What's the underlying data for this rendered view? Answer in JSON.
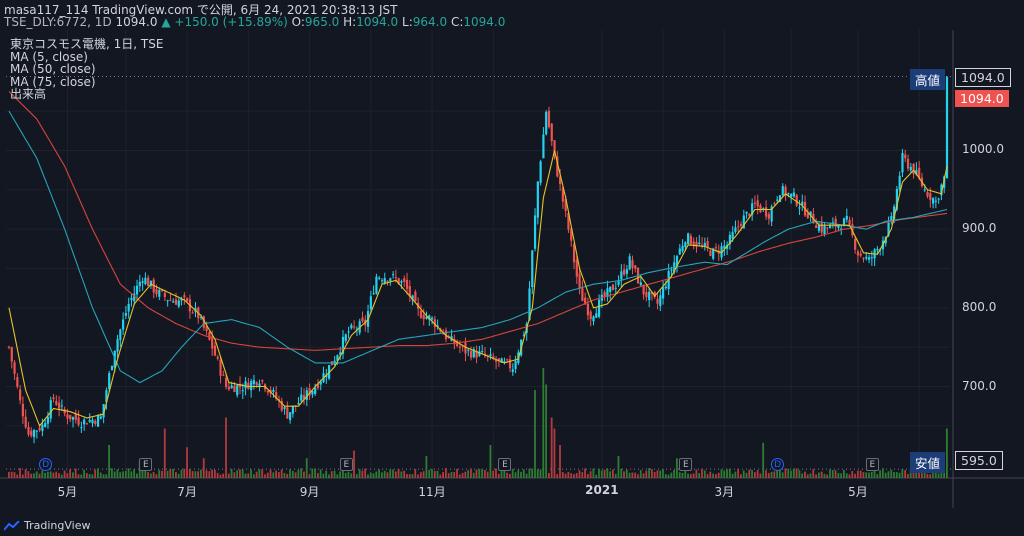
{
  "header": {
    "line1": "masa117_114 TradingView.com で公開, 6月 24, 2021 20:38:13 JST",
    "symbol": "TSE_DLY:6772, 1D",
    "last": "1094.0",
    "arrow": "▲",
    "change": "+150.0 (+15.89%)",
    "ohlc_o_label": "O:",
    "ohlc_o": "965.0",
    "ohlc_h_label": "H:",
    "ohlc_h": "1094.0",
    "ohlc_l_label": "L:",
    "ohlc_l": "964.0",
    "ohlc_c_label": "C:",
    "ohlc_c": "1094.0"
  },
  "legend": {
    "title": "東京コスモス電機, 1日, TSE",
    "ma1": "MA (5, close)",
    "ma2": "MA (50, close)",
    "ma3": "MA (75, close)",
    "volume": "出来高"
  },
  "tags": {
    "high_label": "高値",
    "high_value": "1094.0",
    "last_value": "1094.0",
    "low_label": "安値",
    "low_value": "595.0"
  },
  "footer": {
    "brand": "TradingView",
    "icon": "tradingview-logo-icon"
  },
  "colors": {
    "up": "#26a69a",
    "down": "#ef5350",
    "up_bright": "#22d3ee",
    "ma5": "#e6c229",
    "ma50": "#26a4b8",
    "ma75": "#d9443a",
    "volume_up": "#2e7d32",
    "volume_down": "#b23b3b"
  },
  "chart_data": {
    "type": "candlestick",
    "title": "東京コスモス電機, 1日, TSE",
    "y_ticks": [
      1000.0,
      900.0,
      800.0,
      700.0
    ],
    "ylim": [
      585,
      1115
    ],
    "x_ticks": [
      "5月",
      "7月",
      "9月",
      "11月",
      "2021",
      "3月",
      "5月"
    ],
    "x_tick_index": [
      21,
      64,
      108,
      152,
      213,
      257,
      305
    ],
    "events": [
      {
        "type": "D",
        "index": 13
      },
      {
        "type": "E",
        "index": 49
      },
      {
        "type": "E",
        "index": 121
      },
      {
        "type": "E",
        "index": 178
      },
      {
        "type": "E",
        "index": 243
      },
      {
        "type": "D",
        "index": 276
      },
      {
        "type": "E",
        "index": 310
      }
    ],
    "close_keypoints": [
      [
        0,
        750
      ],
      [
        4,
        680
      ],
      [
        7,
        640
      ],
      [
        12,
        650
      ],
      [
        16,
        685
      ],
      [
        20,
        665
      ],
      [
        26,
        655
      ],
      [
        33,
        660
      ],
      [
        38,
        750
      ],
      [
        43,
        805
      ],
      [
        48,
        840
      ],
      [
        53,
        820
      ],
      [
        58,
        810
      ],
      [
        63,
        808
      ],
      [
        68,
        790
      ],
      [
        73,
        750
      ],
      [
        78,
        700
      ],
      [
        84,
        700
      ],
      [
        90,
        710
      ],
      [
        95,
        690
      ],
      [
        100,
        665
      ],
      [
        104,
        680
      ],
      [
        110,
        700
      ],
      [
        116,
        730
      ],
      [
        122,
        770
      ],
      [
        128,
        780
      ],
      [
        132,
        840
      ],
      [
        137,
        840
      ],
      [
        142,
        830
      ],
      [
        147,
        795
      ],
      [
        152,
        785
      ],
      [
        158,
        760
      ],
      [
        164,
        745
      ],
      [
        170,
        740
      ],
      [
        176,
        730
      ],
      [
        181,
        725
      ],
      [
        186,
        780
      ],
      [
        190,
        960
      ],
      [
        193,
        1050
      ],
      [
        196,
        990
      ],
      [
        201,
        900
      ],
      [
        205,
        820
      ],
      [
        209,
        790
      ],
      [
        213,
        810
      ],
      [
        218,
        830
      ],
      [
        223,
        860
      ],
      [
        228,
        820
      ],
      [
        233,
        805
      ],
      [
        238,
        850
      ],
      [
        243,
        890
      ],
      [
        248,
        880
      ],
      [
        253,
        870
      ],
      [
        258,
        880
      ],
      [
        263,
        910
      ],
      [
        268,
        930
      ],
      [
        273,
        920
      ],
      [
        277,
        950
      ],
      [
        282,
        940
      ],
      [
        287,
        920
      ],
      [
        292,
        900
      ],
      [
        297,
        905
      ],
      [
        301,
        910
      ],
      [
        305,
        870
      ],
      [
        309,
        860
      ],
      [
        313,
        880
      ],
      [
        317,
        910
      ],
      [
        321,
        990
      ],
      [
        325,
        975
      ],
      [
        329,
        950
      ],
      [
        333,
        935
      ],
      [
        336,
        965
      ],
      [
        337,
        1094
      ]
    ],
    "ma5_keypoints": [
      [
        0,
        800
      ],
      [
        6,
        695
      ],
      [
        11,
        650
      ],
      [
        16,
        672
      ],
      [
        22,
        668
      ],
      [
        28,
        660
      ],
      [
        34,
        665
      ],
      [
        39,
        735
      ],
      [
        45,
        805
      ],
      [
        51,
        830
      ],
      [
        57,
        820
      ],
      [
        63,
        810
      ],
      [
        69,
        790
      ],
      [
        74,
        760
      ],
      [
        79,
        705
      ],
      [
        86,
        700
      ],
      [
        92,
        700
      ],
      [
        99,
        675
      ],
      [
        104,
        675
      ],
      [
        110,
        700
      ],
      [
        117,
        725
      ],
      [
        123,
        765
      ],
      [
        129,
        785
      ],
      [
        134,
        830
      ],
      [
        139,
        835
      ],
      [
        144,
        815
      ],
      [
        150,
        790
      ],
      [
        157,
        765
      ],
      [
        164,
        750
      ],
      [
        171,
        740
      ],
      [
        178,
        730
      ],
      [
        183,
        735
      ],
      [
        188,
        800
      ],
      [
        192,
        940
      ],
      [
        196,
        1000
      ],
      [
        200,
        940
      ],
      [
        205,
        850
      ],
      [
        210,
        800
      ],
      [
        215,
        805
      ],
      [
        221,
        830
      ],
      [
        227,
        840
      ],
      [
        232,
        815
      ],
      [
        238,
        840
      ],
      [
        244,
        880
      ],
      [
        250,
        878
      ],
      [
        256,
        870
      ],
      [
        262,
        895
      ],
      [
        268,
        925
      ],
      [
        274,
        925
      ],
      [
        279,
        945
      ],
      [
        285,
        930
      ],
      [
        291,
        905
      ],
      [
        297,
        905
      ],
      [
        302,
        905
      ],
      [
        307,
        870
      ],
      [
        312,
        868
      ],
      [
        317,
        900
      ],
      [
        321,
        960
      ],
      [
        325,
        975
      ],
      [
        330,
        950
      ],
      [
        335,
        945
      ],
      [
        337,
        980
      ]
    ],
    "ma50_keypoints": [
      [
        0,
        1050
      ],
      [
        10,
        990
      ],
      [
        20,
        900
      ],
      [
        30,
        800
      ],
      [
        40,
        720
      ],
      [
        47,
        705
      ],
      [
        55,
        720
      ],
      [
        62,
        750
      ],
      [
        70,
        780
      ],
      [
        80,
        785
      ],
      [
        90,
        775
      ],
      [
        100,
        750
      ],
      [
        110,
        730
      ],
      [
        120,
        730
      ],
      [
        130,
        745
      ],
      [
        140,
        760
      ],
      [
        150,
        765
      ],
      [
        160,
        770
      ],
      [
        170,
        775
      ],
      [
        180,
        785
      ],
      [
        190,
        800
      ],
      [
        200,
        820
      ],
      [
        210,
        830
      ],
      [
        220,
        835
      ],
      [
        230,
        845
      ],
      [
        240,
        852
      ],
      [
        250,
        858
      ],
      [
        258,
        855
      ],
      [
        265,
        870
      ],
      [
        272,
        885
      ],
      [
        280,
        900
      ],
      [
        290,
        910
      ],
      [
        300,
        905
      ],
      [
        308,
        900
      ],
      [
        315,
        910
      ],
      [
        325,
        915
      ],
      [
        337,
        925
      ]
    ],
    "ma75_keypoints": [
      [
        0,
        1075
      ],
      [
        10,
        1040
      ],
      [
        20,
        980
      ],
      [
        30,
        900
      ],
      [
        40,
        830
      ],
      [
        50,
        800
      ],
      [
        60,
        780
      ],
      [
        70,
        765
      ],
      [
        80,
        755
      ],
      [
        90,
        750
      ],
      [
        100,
        748
      ],
      [
        110,
        746
      ],
      [
        120,
        748
      ],
      [
        130,
        750
      ],
      [
        140,
        752
      ],
      [
        150,
        752
      ],
      [
        160,
        755
      ],
      [
        170,
        760
      ],
      [
        180,
        770
      ],
      [
        190,
        780
      ],
      [
        200,
        795
      ],
      [
        210,
        810
      ],
      [
        220,
        820
      ],
      [
        230,
        830
      ],
      [
        240,
        840
      ],
      [
        250,
        850
      ],
      [
        260,
        860
      ],
      [
        270,
        872
      ],
      [
        280,
        882
      ],
      [
        290,
        890
      ],
      [
        300,
        900
      ],
      [
        310,
        905
      ],
      [
        320,
        912
      ],
      [
        337,
        920
      ]
    ],
    "volume_spikes": [
      [
        36,
        0.3
      ],
      [
        47,
        0.15
      ],
      [
        56,
        0.45
      ],
      [
        64,
        0.28
      ],
      [
        70,
        0.18
      ],
      [
        78,
        0.55
      ],
      [
        107,
        0.18
      ],
      [
        124,
        0.25
      ],
      [
        150,
        0.2
      ],
      [
        173,
        0.3
      ],
      [
        189,
        0.8
      ],
      [
        192,
        1.0
      ],
      [
        193,
        0.85
      ],
      [
        195,
        0.55
      ],
      [
        196,
        0.45
      ],
      [
        198,
        0.3
      ],
      [
        219,
        0.2
      ],
      [
        240,
        0.18
      ],
      [
        271,
        0.32
      ],
      [
        325,
        0.2
      ],
      [
        333,
        0.15
      ],
      [
        337,
        0.45
      ]
    ],
    "xlabel": "",
    "ylabel": ""
  }
}
